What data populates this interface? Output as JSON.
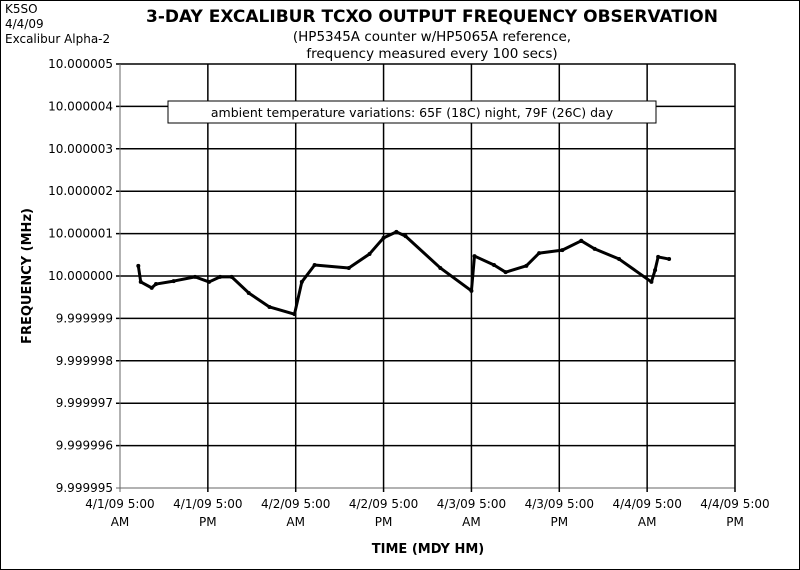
{
  "corner_text": [
    "K5SO",
    "4/4/09",
    "Excalibur Alpha-2"
  ],
  "chart_data": {
    "type": "line",
    "title": "3-DAY EXCALIBUR TCXO OUTPUT FREQUENCY OBSERVATION",
    "subtitle": [
      "(HP5345A counter w/HP5065A reference,",
      "frequency measured every 100 secs)"
    ],
    "xlabel": "TIME (MDY HM)",
    "ylabel": "FREQUENCY (MHz)",
    "annotation": "ambient temperature variations:  65F (18C) night, 79F (26C) day",
    "ylim": [
      9.999995,
      10.000005
    ],
    "yticks": [
      "10.000005",
      "10.000004",
      "10.000003",
      "10.000002",
      "10.000001",
      "10.000000",
      "9.999999",
      "9.999998",
      "9.999997",
      "9.999996",
      "9.999995"
    ],
    "xlim": [
      "2009-04-01T05:00",
      "2009-04-04T17:00"
    ],
    "xticks": [
      [
        "4/1/09 5:00",
        "AM"
      ],
      [
        "4/1/09 5:00",
        "PM"
      ],
      [
        "4/2/09 5:00",
        "AM"
      ],
      [
        "4/2/09 5:00",
        "PM"
      ],
      [
        "4/3/09 5:00",
        "AM"
      ],
      [
        "4/3/09 5:00",
        "PM"
      ],
      [
        "4/4/09 5:00",
        "AM"
      ],
      [
        "4/4/09 5:00",
        "PM"
      ]
    ],
    "grid": true,
    "line_color": "#000000",
    "points": [
      [
        "2009-04-01T07:30",
        10.00000024
      ],
      [
        "2009-04-01T07:50",
        9.99999986
      ],
      [
        "2009-04-01T09:20",
        9.99999972
      ],
      [
        "2009-04-01T09:55",
        9.99999981
      ],
      [
        "2009-04-01T12:20",
        9.99999988
      ],
      [
        "2009-04-01T15:15",
        9.99999998
      ],
      [
        "2009-04-01T17:10",
        9.99999986
      ],
      [
        "2009-04-01T18:40",
        9.99999998
      ],
      [
        "2009-04-01T20:15",
        9.99999998
      ],
      [
        "2009-04-01T22:35",
        9.9999996
      ],
      [
        "2009-04-02T01:25",
        9.99999927
      ],
      [
        "2009-04-02T04:50",
        9.9999991
      ],
      [
        "2009-04-02T05:50",
        9.99999986
      ],
      [
        "2009-04-02T07:35",
        10.00000026
      ],
      [
        "2009-04-02T12:15",
        10.00000019
      ],
      [
        "2009-04-02T15:05",
        10.00000052
      ],
      [
        "2009-04-02T17:00",
        10.0000009
      ],
      [
        "2009-04-02T18:45",
        10.00000104
      ],
      [
        "2009-04-02T20:00",
        10.00000094
      ],
      [
        "2009-04-03T00:45",
        10.00000019
      ],
      [
        "2009-04-03T05:00",
        9.99999965
      ],
      [
        "2009-04-03T05:25",
        10.00000047
      ],
      [
        "2009-04-03T08:05",
        10.00000026
      ],
      [
        "2009-04-03T09:40",
        10.00000009
      ],
      [
        "2009-04-03T12:30",
        10.00000024
      ],
      [
        "2009-04-03T14:15",
        10.00000054
      ],
      [
        "2009-04-03T17:25",
        10.00000061
      ],
      [
        "2009-04-03T20:00",
        10.00000083
      ],
      [
        "2009-04-03T21:50",
        10.00000064
      ],
      [
        "2009-04-04T01:10",
        10.0000004
      ],
      [
        "2009-04-04T05:35",
        9.99999986
      ],
      [
        "2009-04-04T06:05",
        10.00000014
      ],
      [
        "2009-04-04T06:30",
        10.00000045
      ],
      [
        "2009-04-04T08:00",
        10.0000004
      ]
    ]
  }
}
